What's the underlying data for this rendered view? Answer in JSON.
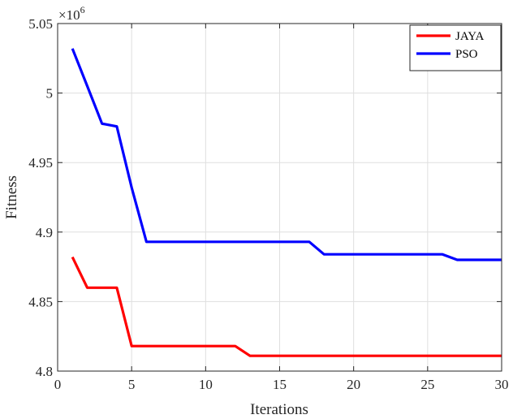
{
  "chart_data": {
    "type": "line",
    "xlabel": "Iterations",
    "ylabel": "Fitness",
    "xlim": [
      0,
      30
    ],
    "ylim": [
      4.8,
      5.05
    ],
    "y_multiplier_label": {
      "base": "×10",
      "exponent": "6"
    },
    "x_ticks": [
      0,
      5,
      10,
      15,
      20,
      25,
      30
    ],
    "y_ticks": [
      4.8,
      4.85,
      4.9,
      4.95,
      5,
      5.05
    ],
    "x_tick_labels": [
      "0",
      "5",
      "10",
      "15",
      "20",
      "25",
      "30"
    ],
    "y_tick_labels": [
      "4.8",
      "4.85",
      "4.9",
      "4.95",
      "5",
      "5.05"
    ],
    "grid": true,
    "legend_position": "top-right",
    "series": [
      {
        "name": "JAYA",
        "color": "#ff0000",
        "x": [
          1,
          2,
          3,
          4,
          5,
          6,
          7,
          8,
          9,
          10,
          11,
          12,
          13,
          14,
          15,
          16,
          17,
          18,
          19,
          20,
          21,
          22,
          23,
          24,
          25,
          26,
          27,
          28,
          29,
          30
        ],
        "y": [
          4.882,
          4.86,
          4.86,
          4.86,
          4.818,
          4.818,
          4.818,
          4.818,
          4.818,
          4.818,
          4.818,
          4.818,
          4.811,
          4.811,
          4.811,
          4.811,
          4.811,
          4.811,
          4.811,
          4.811,
          4.811,
          4.811,
          4.811,
          4.811,
          4.811,
          4.811,
          4.811,
          4.811,
          4.811,
          4.811
        ]
      },
      {
        "name": "PSO",
        "color": "#0000ff",
        "x": [
          1,
          2,
          3,
          4,
          5,
          6,
          7,
          8,
          9,
          10,
          11,
          12,
          13,
          14,
          15,
          16,
          17,
          18,
          19,
          20,
          21,
          22,
          23,
          24,
          25,
          26,
          27,
          28,
          29,
          30
        ],
        "y": [
          5.032,
          5.005,
          4.978,
          4.976,
          4.932,
          4.893,
          4.893,
          4.893,
          4.893,
          4.893,
          4.893,
          4.893,
          4.893,
          4.893,
          4.893,
          4.893,
          4.893,
          4.884,
          4.884,
          4.884,
          4.884,
          4.884,
          4.884,
          4.884,
          4.884,
          4.884,
          4.88,
          4.88,
          4.88,
          4.88
        ]
      }
    ]
  }
}
